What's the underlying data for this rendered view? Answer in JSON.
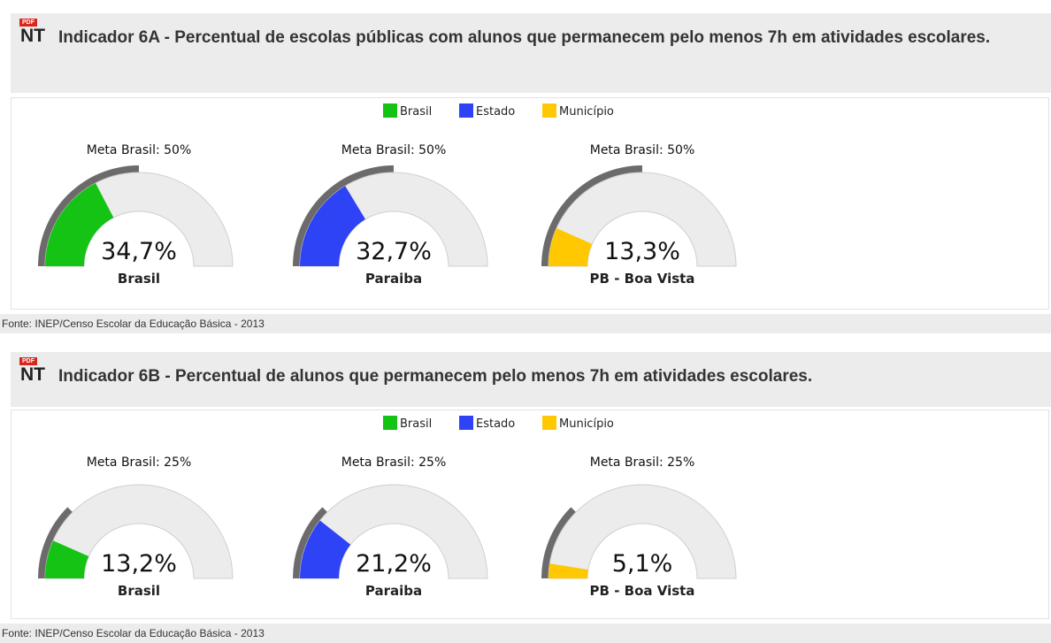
{
  "icon_tag": "PDF",
  "icon_label": "NT",
  "sections": [
    {
      "title": "Indicador 6A - Percentual de escolas públicas com alunos que permanecem pelo menos 7h em atividades escolares.",
      "legend": [
        {
          "name": "Brasil",
          "color": "#14c314"
        },
        {
          "name": "Estado",
          "color": "#2e43f5"
        },
        {
          "name": "Município",
          "color": "#ffc800"
        }
      ],
      "ylim": [
        0,
        100
      ],
      "gauges": [
        {
          "label": "Brasil",
          "value": 34.7,
          "value_label": "34,7%",
          "meta": 50,
          "meta_label": "Meta Brasil: 50%",
          "color": "#14c314"
        },
        {
          "label": "Paraiba",
          "value": 32.7,
          "value_label": "32,7%",
          "meta": 50,
          "meta_label": "Meta Brasil: 50%",
          "color": "#2e43f5"
        },
        {
          "label": "PB - Boa Vista",
          "value": 13.3,
          "value_label": "13,3%",
          "meta": 50,
          "meta_label": "Meta Brasil: 50%",
          "color": "#ffc800"
        }
      ],
      "source": "Fonte: INEP/Censo Escolar da Educação Básica - 2013"
    },
    {
      "title": "Indicador 6B - Percentual de alunos que permanecem pelo menos 7h em atividades escolares.",
      "legend": [
        {
          "name": "Brasil",
          "color": "#14c314"
        },
        {
          "name": "Estado",
          "color": "#2e43f5"
        },
        {
          "name": "Município",
          "color": "#ffc800"
        }
      ],
      "ylim": [
        0,
        100
      ],
      "gauges": [
        {
          "label": "Brasil",
          "value": 13.2,
          "value_label": "13,2%",
          "meta": 25,
          "meta_label": "Meta Brasil: 25%",
          "color": "#14c314"
        },
        {
          "label": "Paraiba",
          "value": 21.2,
          "value_label": "21,2%",
          "meta": 25,
          "meta_label": "Meta Brasil: 25%",
          "color": "#2e43f5"
        },
        {
          "label": "PB - Boa Vista",
          "value": 5.1,
          "value_label": "5,1%",
          "meta": 25,
          "meta_label": "Meta Brasil: 25%",
          "color": "#ffc800"
        }
      ],
      "source": "Fonte: INEP/Censo Escolar da Educação Básica - 2013"
    }
  ]
}
